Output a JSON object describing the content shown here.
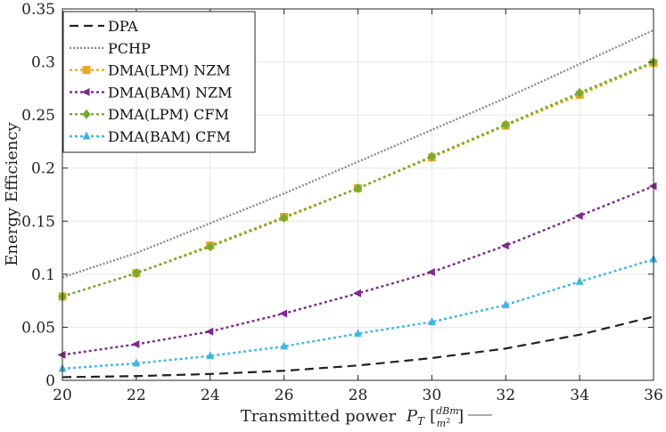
{
  "chart_data": {
    "type": "line",
    "xlabel": "Transmitted power",
    "xlabel_symbol": "P",
    "xlabel_subscript": "T",
    "xlabel_unit_num": "dBm",
    "xlabel_unit_den": "m",
    "xlabel_unit_den_sup": "2",
    "ylabel": "Energy Efficiency",
    "xlim": [
      20,
      36
    ],
    "ylim": [
      0,
      0.35
    ],
    "xticks": [
      20,
      22,
      24,
      26,
      28,
      30,
      32,
      34,
      36
    ],
    "yticks": [
      0,
      0.05,
      0.1,
      0.15,
      0.2,
      0.25,
      0.3,
      0.35
    ],
    "ytick_labels": [
      "0",
      "0.05",
      "0.1",
      "0.15",
      "0.2",
      "0.25",
      "0.3",
      "0.35"
    ],
    "grid": true,
    "legend_position": "top-left",
    "x": [
      20,
      22,
      24,
      26,
      28,
      30,
      32,
      34,
      36
    ],
    "series": [
      {
        "name": "DPA",
        "color": "#222222",
        "dash": "10,6",
        "marker": "none",
        "values": [
          0.003,
          0.004,
          0.006,
          0.009,
          0.014,
          0.021,
          0.03,
          0.043,
          0.06
        ]
      },
      {
        "name": "PCHP",
        "color": "#8c8c8c",
        "dash": "2,2",
        "marker": "none",
        "values": [
          0.097,
          0.12,
          0.148,
          0.176,
          0.206,
          0.236,
          0.266,
          0.298,
          0.33
        ]
      },
      {
        "name": "DMA(LPM) NZM",
        "color": "#e8a820",
        "dash": "3,3",
        "marker": "square",
        "values": [
          0.079,
          0.101,
          0.127,
          0.154,
          0.181,
          0.21,
          0.24,
          0.269,
          0.299
        ]
      },
      {
        "name": "DMA(BAM) NZM",
        "color": "#7e2a8e",
        "dash": "3,3",
        "marker": "triangle-left",
        "values": [
          0.024,
          0.034,
          0.046,
          0.063,
          0.082,
          0.102,
          0.127,
          0.155,
          0.183
        ]
      },
      {
        "name": "DMA(LPM) CFM",
        "color": "#74ac2f",
        "dash": "3,3",
        "marker": "diamond",
        "values": [
          0.079,
          0.101,
          0.126,
          0.153,
          0.181,
          0.211,
          0.241,
          0.271,
          0.3
        ]
      },
      {
        "name": "DMA(BAM) CFM",
        "color": "#3fb6e6",
        "dash": "3,3",
        "marker": "triangle-up",
        "values": [
          0.011,
          0.016,
          0.023,
          0.032,
          0.044,
          0.055,
          0.071,
          0.093,
          0.114
        ]
      }
    ]
  }
}
